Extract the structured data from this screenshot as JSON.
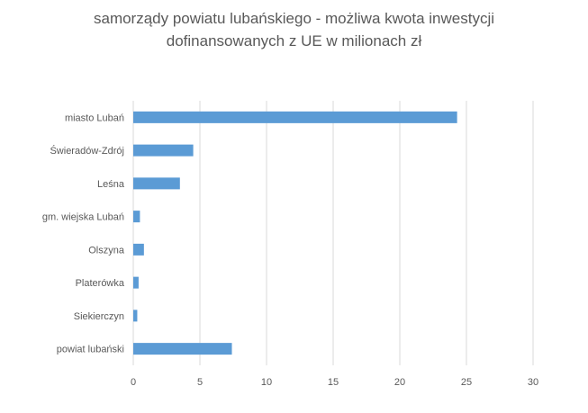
{
  "chart_data": {
    "type": "bar",
    "orientation": "horizontal",
    "title_line1": "samorządy powiatu lubańskiego - możliwa kwota inwestycji",
    "title_line2": "dofinansowanych z UE w milionach zł",
    "xlabel": "",
    "ylabel": "",
    "categories": [
      "miasto Lubań",
      "Świeradów-Zdrój",
      "Leśna",
      "gm. wiejska Lubań",
      "Olszyna",
      "Platerówka",
      "Siekierczyn",
      "powiat lubański"
    ],
    "values": [
      24.3,
      4.5,
      3.5,
      0.5,
      0.8,
      0.4,
      0.3,
      7.4
    ],
    "xlim": [
      0,
      30
    ],
    "xticks": [
      0,
      5,
      10,
      15,
      20,
      25,
      30
    ],
    "grid": true,
    "legend": "none",
    "bar_color": "#5b9bd5",
    "grid_color": "#d9d9d9"
  }
}
